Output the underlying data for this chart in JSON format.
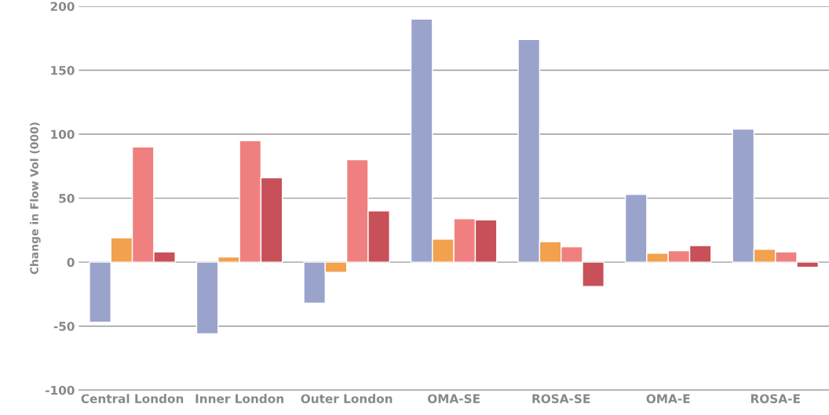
{
  "chart_data": {
    "type": "bar",
    "ylabel": "Change in Flow Vol (000)",
    "categories": [
      "Central London",
      "Inner London",
      "Outer London",
      "OMA-SE",
      "ROSA-SE",
      "OMA-E",
      "ROSA-E"
    ],
    "series": [
      {
        "color": "#9aa3cc",
        "values": [
          -47,
          -56,
          -32,
          190,
          174,
          53,
          104
        ]
      },
      {
        "color": "#f2a14f",
        "values": [
          19,
          4,
          -8,
          18,
          16,
          7,
          10
        ]
      },
      {
        "color": "#f08080",
        "values": [
          90,
          95,
          80,
          34,
          12,
          9,
          8
        ]
      },
      {
        "color": "#c85058",
        "values": [
          8,
          66,
          40,
          33,
          -19,
          13,
          -4
        ]
      }
    ],
    "ylim": [
      -100,
      200
    ],
    "yticks": [
      -100,
      -50,
      0,
      50,
      100,
      150,
      200
    ],
    "grid": "y",
    "legend": false
  }
}
